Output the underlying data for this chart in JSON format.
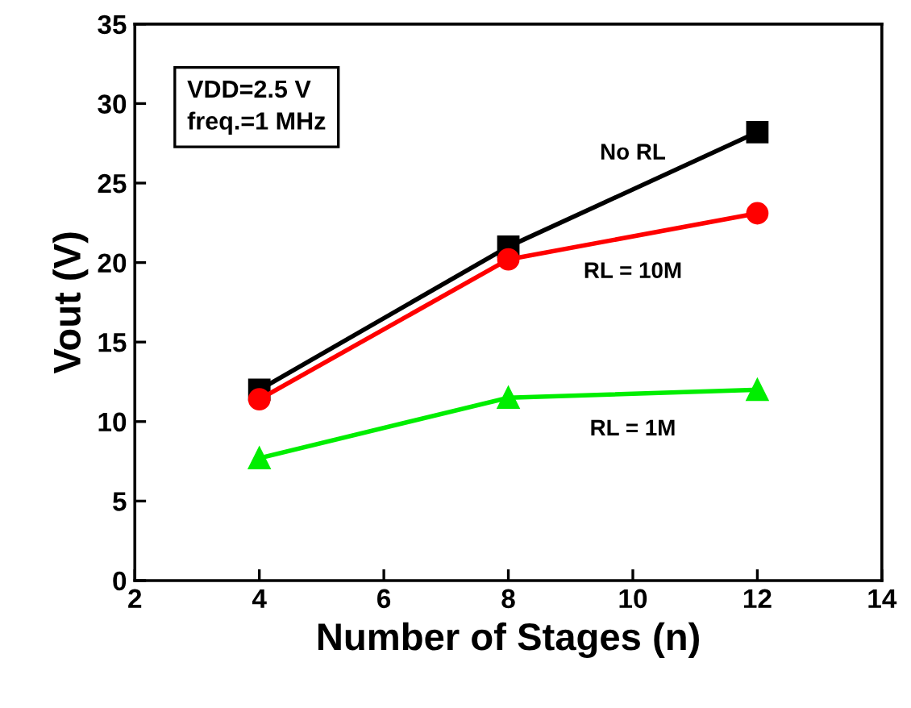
{
  "chart_data": {
    "type": "line",
    "xlabel": "Number of Stages (n)",
    "ylabel": "Vout (V)",
    "x": [
      4,
      8,
      12
    ],
    "series": [
      {
        "name": "No RL",
        "color": "#000000",
        "marker": "square",
        "values": [
          12.0,
          21.0,
          28.2
        ]
      },
      {
        "name": "RL = 10M",
        "color": "#ff0000",
        "marker": "circle",
        "values": [
          11.4,
          20.2,
          23.1
        ]
      },
      {
        "name": "RL = 1M",
        "color": "#00ee00",
        "marker": "triangle",
        "values": [
          7.7,
          11.5,
          12.0
        ]
      }
    ],
    "annotations": [
      "VDD=2.5 V\nfreq.=1 MHz"
    ],
    "xlim": [
      2,
      14
    ],
    "xticks": [
      2,
      4,
      6,
      8,
      10,
      12,
      14
    ],
    "ylim": [
      0,
      35
    ],
    "yticks": [
      0,
      5,
      10,
      15,
      20,
      25,
      30,
      35
    ],
    "grid": false,
    "line_style": "solid"
  }
}
